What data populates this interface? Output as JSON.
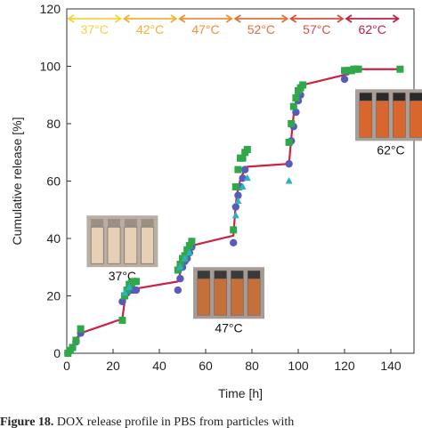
{
  "chart_data": {
    "type": "scatter",
    "xlabel": "Time [h]",
    "ylabel": "Cumulative release [%]",
    "xlim": [
      0,
      150
    ],
    "ylim": [
      0,
      120
    ],
    "xticks": [
      "0",
      "20",
      "40",
      "60",
      "80",
      "100",
      "120",
      "140"
    ],
    "yticks": [
      "0",
      "20",
      "40",
      "60",
      "80",
      "100",
      "120"
    ],
    "temperature_bands": [
      {
        "label": "37°C",
        "from": 0,
        "to": 24,
        "color": "#f5d23a"
      },
      {
        "label": "42°C",
        "from": 24,
        "to": 48,
        "color": "#f2b234"
      },
      {
        "label": "47°C",
        "from": 48,
        "to": 72,
        "color": "#ee8f34"
      },
      {
        "label": "52°C",
        "from": 72,
        "to": 96,
        "color": "#e2713a"
      },
      {
        "label": "57°C",
        "from": 96,
        "to": 120,
        "color": "#d7503e"
      },
      {
        "label": "62°C",
        "from": 120,
        "to": 144,
        "color": "#c51d43"
      }
    ],
    "fit_line": {
      "color": "#cc2244",
      "x": [
        0,
        1,
        2,
        3,
        4,
        6,
        24,
        25,
        26,
        48,
        49,
        50,
        51,
        52,
        54,
        72,
        73,
        74,
        75,
        76,
        77,
        78,
        96,
        97,
        98,
        99,
        100,
        101,
        102,
        120,
        121,
        122,
        123,
        124,
        126,
        144
      ],
      "y": [
        0,
        1,
        2,
        3.5,
        5,
        7,
        12,
        18,
        22,
        25,
        28,
        31,
        33.5,
        35,
        37.5,
        41,
        52,
        57.5,
        60.5,
        62.5,
        64,
        65,
        66,
        75,
        83,
        88,
        91,
        92.5,
        93.5,
        97,
        98,
        98.5,
        99,
        99,
        99,
        99
      ]
    },
    "series": [
      {
        "marker": "circle",
        "color": "#5a5ab8",
        "x": [
          0.5,
          1.5,
          2.5,
          4,
          6,
          24,
          25,
          26,
          27,
          28,
          29,
          30,
          48,
          49,
          50,
          51,
          52,
          53,
          54,
          72,
          73,
          74,
          75,
          76,
          77,
          96,
          97,
          98,
          99,
          100,
          101,
          120,
          121,
          122
        ],
        "y": [
          0,
          1,
          2,
          4,
          7,
          18,
          20,
          21,
          22,
          22,
          22,
          22,
          22,
          26,
          30,
          32,
          33,
          35,
          37,
          38.5,
          51,
          55,
          58,
          61,
          64,
          66,
          74,
          79,
          84,
          88,
          90,
          95.5,
          98,
          98.5
        ]
      },
      {
        "marker": "square",
        "color": "#2fa84a",
        "x": [
          0.5,
          1.5,
          2.5,
          4,
          6,
          24,
          25,
          26,
          27,
          28,
          29,
          30,
          48,
          49,
          50,
          51,
          52,
          53,
          54,
          72,
          73,
          74,
          75,
          76,
          77,
          78,
          96,
          97,
          98,
          99,
          100,
          101,
          102,
          120,
          121,
          122,
          123,
          124,
          125,
          126,
          144
        ],
        "y": [
          0,
          1,
          2,
          4.5,
          8.5,
          11.5,
          20,
          22,
          24,
          24.5,
          25,
          25,
          29,
          31,
          33,
          34,
          36,
          37.5,
          39,
          43,
          58,
          64,
          68,
          68,
          70,
          71,
          73.5,
          80,
          86,
          89,
          91.5,
          92.5,
          93.5,
          98.5,
          98.5,
          98.5,
          98.5,
          99,
          99,
          99,
          99
        ]
      },
      {
        "marker": "triangle",
        "color": "#2bb2c4",
        "x": [
          25,
          27,
          49,
          51,
          53,
          73,
          74,
          76,
          78,
          96
        ],
        "y": [
          21,
          23,
          30,
          33,
          35,
          48,
          53,
          58,
          61,
          60
        ]
      }
    ],
    "insets": [
      {
        "label": "37°C",
        "x": 24,
        "y": 48,
        "vials": 4,
        "liquid": "#e6d0b6",
        "cap": "#9a8f82",
        "bg": "#b8aea4"
      },
      {
        "label": "47°C",
        "x": 70,
        "y": 30,
        "vials": 4,
        "liquid": "#c56f3a",
        "cap": "#3a3a3a",
        "bg": "#a79c95"
      },
      {
        "label": "62°C",
        "x": 140,
        "y": 92,
        "vials": 4,
        "liquid": "#d9662d",
        "cap": "#2b2b2b",
        "bg": "#a99f98"
      }
    ]
  },
  "caption": {
    "bold": "Figure 18.",
    "text": " DOX release profile in PBS from particles with"
  }
}
